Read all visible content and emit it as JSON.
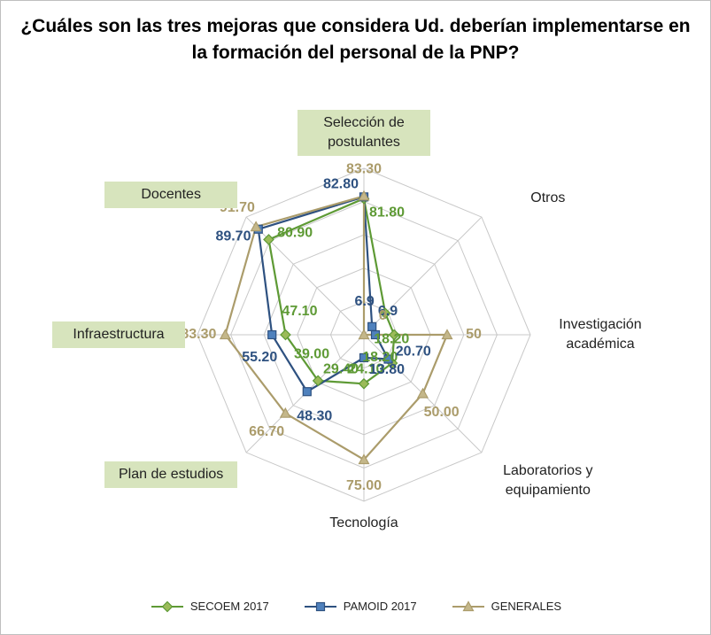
{
  "chart_data": {
    "type": "radar",
    "title": "¿Cuáles son las tres mejoras que considera Ud. deberían implementarse en la formación del personal de la PNP?",
    "categories": [
      "Selección de postulantes",
      "Otros",
      "Investigación académica",
      "Laboratorios y equipamiento",
      "Tecnología",
      "Plan de estudios",
      "Infraestructura",
      "Docentes"
    ],
    "highlighted": [
      true,
      false,
      false,
      false,
      false,
      true,
      true,
      true
    ],
    "highlight_color": "#d7e4bd",
    "rlim": [
      0,
      100
    ],
    "rticks": [
      20,
      40,
      60,
      80,
      100
    ],
    "grid": true,
    "legend": "bottom",
    "series": [
      {
        "name": "SECOEM 2017",
        "color": "#5e9a35",
        "marker": "diamond",
        "values": [
          81.8,
          18.2,
          18.2,
          24.1,
          29.4,
          39.0,
          47.1,
          80.9
        ],
        "value_labels": [
          "81.80",
          "18.20",
          "18.20",
          "24.10",
          "29.40",
          "39.00",
          "47.10",
          "80.90"
        ]
      },
      {
        "name": "PAMOID 2017",
        "color": "#2e5180",
        "marker": "square",
        "values": [
          82.8,
          6.9,
          6.9,
          20.7,
          13.8,
          48.3,
          55.2,
          89.7
        ],
        "value_labels": [
          "82.80",
          "6.9",
          "6.9",
          "20.70",
          "13.80",
          "48.30",
          "55.20",
          "89.70"
        ]
      },
      {
        "name": "GENERALES",
        "color": "#ab9c6b",
        "marker": "triangle",
        "values": [
          83.3,
          0,
          50,
          50.0,
          75.0,
          66.7,
          83.3,
          91.7
        ],
        "value_labels": [
          "83.30",
          "0",
          "50",
          "50.00",
          "75.00",
          "66.70",
          "83.30",
          "91.70"
        ]
      }
    ]
  }
}
